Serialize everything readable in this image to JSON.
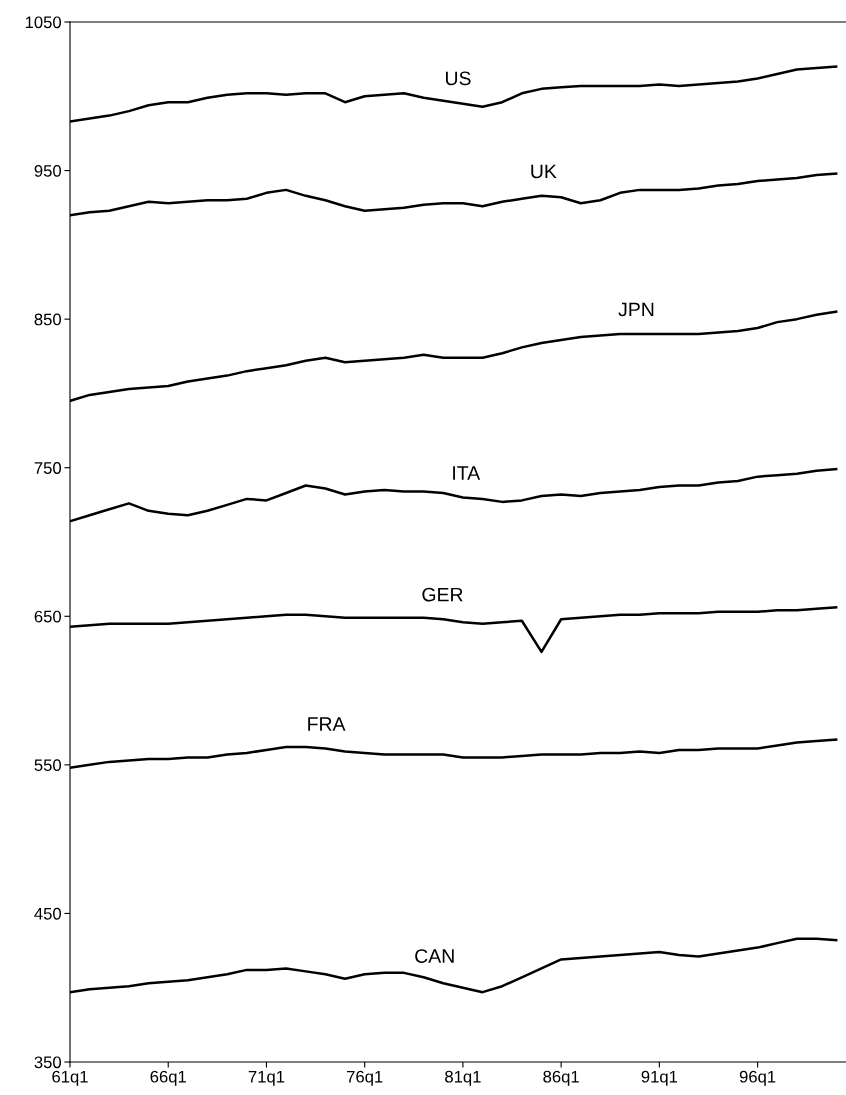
{
  "chart_data": {
    "type": "line",
    "categories": [
      "61q1",
      null,
      null,
      null,
      null,
      "66q1",
      null,
      null,
      null,
      null,
      "71q1",
      null,
      null,
      null,
      null,
      "76q1",
      null,
      null,
      null,
      null,
      "81q1",
      null,
      null,
      null,
      null,
      "86q1",
      null,
      null,
      null,
      null,
      "91q1",
      null,
      null,
      null,
      null,
      "96q1",
      null,
      null,
      null,
      null
    ],
    "ylim": [
      350,
      1050
    ],
    "yticks": [
      350,
      450,
      550,
      650,
      750,
      850,
      950,
      1050
    ],
    "grid": false,
    "legend": false,
    "marker": "none",
    "line_style": "solid",
    "series": [
      {
        "name": "US",
        "color": "#000000",
        "values": [
          983,
          985,
          987,
          990,
          994,
          996,
          996,
          999,
          1001,
          1002,
          1002,
          1001,
          1002,
          1002,
          996,
          1000,
          1001,
          1002,
          999,
          997,
          995,
          993,
          996,
          1002,
          1005,
          1006,
          1007,
          1007,
          1007,
          1007,
          1008,
          1007,
          1008,
          1009,
          1010,
          1012,
          1015,
          1018,
          1019,
          1020
        ]
      },
      {
        "name": "UK",
        "color": "#000000",
        "values": [
          920,
          922,
          923,
          926,
          929,
          928,
          929,
          930,
          930,
          931,
          935,
          937,
          933,
          930,
          926,
          923,
          924,
          925,
          927,
          928,
          928,
          926,
          929,
          931,
          933,
          932,
          928,
          930,
          935,
          937,
          937,
          937,
          938,
          940,
          941,
          943,
          944,
          945,
          947,
          948
        ]
      },
      {
        "name": "JPN",
        "color": "#000000",
        "values": [
          795,
          799,
          801,
          803,
          804,
          805,
          808,
          810,
          812,
          815,
          817,
          819,
          822,
          824,
          821,
          822,
          823,
          824,
          826,
          824,
          824,
          824,
          827,
          831,
          834,
          836,
          838,
          839,
          840,
          840,
          840,
          840,
          840,
          841,
          842,
          844,
          848,
          850,
          853,
          855
        ]
      },
      {
        "name": "ITA",
        "color": "#000000",
        "values": [
          714,
          718,
          722,
          726,
          721,
          719,
          718,
          721,
          725,
          729,
          728,
          733,
          738,
          736,
          732,
          734,
          735,
          734,
          734,
          733,
          730,
          729,
          727,
          728,
          731,
          732,
          731,
          733,
          734,
          735,
          737,
          738,
          738,
          740,
          741,
          744,
          745,
          746,
          748,
          749
        ]
      },
      {
        "name": "GER",
        "color": "#000000",
        "values": [
          643,
          644,
          645,
          645,
          645,
          645,
          646,
          647,
          648,
          649,
          650,
          651,
          651,
          650,
          649,
          649,
          649,
          649,
          649,
          648,
          646,
          645,
          646,
          647,
          626,
          648,
          649,
          650,
          651,
          651,
          652,
          652,
          652,
          653,
          653,
          653,
          654,
          654,
          655,
          656
        ]
      },
      {
        "name": "FRA",
        "color": "#000000",
        "values": [
          548,
          550,
          552,
          553,
          554,
          554,
          555,
          555,
          557,
          558,
          560,
          562,
          562,
          561,
          559,
          558,
          557,
          557,
          557,
          557,
          555,
          555,
          555,
          556,
          557,
          557,
          557,
          558,
          558,
          559,
          558,
          560,
          560,
          561,
          561,
          561,
          563,
          565,
          566,
          567
        ]
      },
      {
        "name": "CAN",
        "color": "#000000",
        "values": [
          397,
          399,
          400,
          401,
          403,
          404,
          405,
          407,
          409,
          412,
          412,
          413,
          411,
          409,
          406,
          409,
          410,
          410,
          407,
          403,
          400,
          397,
          401,
          407,
          413,
          419,
          420,
          421,
          422,
          423,
          424,
          422,
          421,
          423,
          425,
          427,
          430,
          433,
          433,
          432
        ]
      }
    ]
  }
}
